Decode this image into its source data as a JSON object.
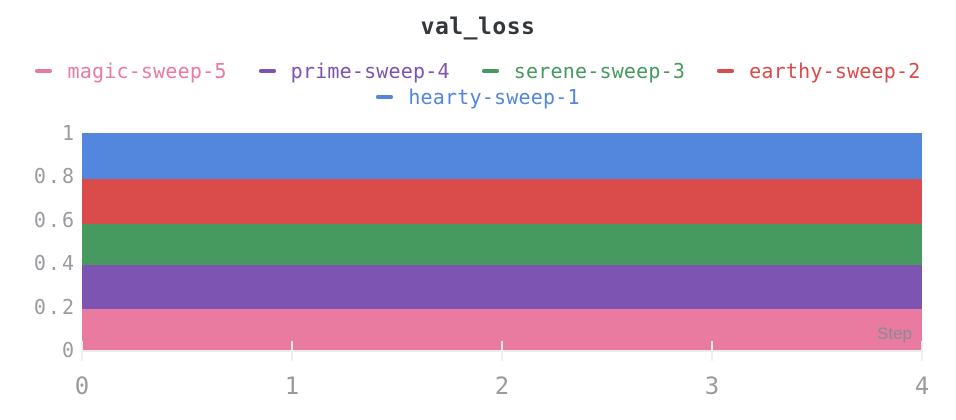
{
  "chart_data": {
    "type": "area",
    "stacked": true,
    "title": "val_loss",
    "xlabel": "Step",
    "ylabel": "",
    "xlim": [
      0,
      4
    ],
    "ylim": [
      0,
      1
    ],
    "x": [
      0,
      1,
      2,
      3,
      4
    ],
    "x_ticks": [
      0,
      1,
      2,
      3,
      4
    ],
    "y_ticks": [
      0,
      0.2,
      0.4,
      0.6,
      0.8,
      1
    ],
    "grid": false,
    "legend_position": "top",
    "series": [
      {
        "name": "magic-sweep-5",
        "color": "#E87B9F",
        "values": [
          0.19,
          0.19,
          0.19,
          0.19,
          0.19
        ]
      },
      {
        "name": "prime-sweep-4",
        "color": "#7D54B2",
        "values": [
          0.2,
          0.2,
          0.2,
          0.2,
          0.2
        ]
      },
      {
        "name": "serene-sweep-3",
        "color": "#479A5F",
        "values": [
          0.19,
          0.19,
          0.19,
          0.19,
          0.19
        ]
      },
      {
        "name": "earthy-sweep-2",
        "color": "#DA4C4C",
        "values": [
          0.21,
          0.21,
          0.21,
          0.21,
          0.21
        ]
      },
      {
        "name": "hearty-sweep-1",
        "color": "#5387DD",
        "values": [
          0.21,
          0.21,
          0.21,
          0.21,
          0.21
        ]
      }
    ],
    "cumulative_boundaries": [
      0.19,
      0.39,
      0.58,
      0.79,
      1.0
    ]
  },
  "colors": {
    "title_text": "#33363b",
    "axis_label_gray": "#9b9ba1",
    "step_label_gray": "#878c94"
  }
}
